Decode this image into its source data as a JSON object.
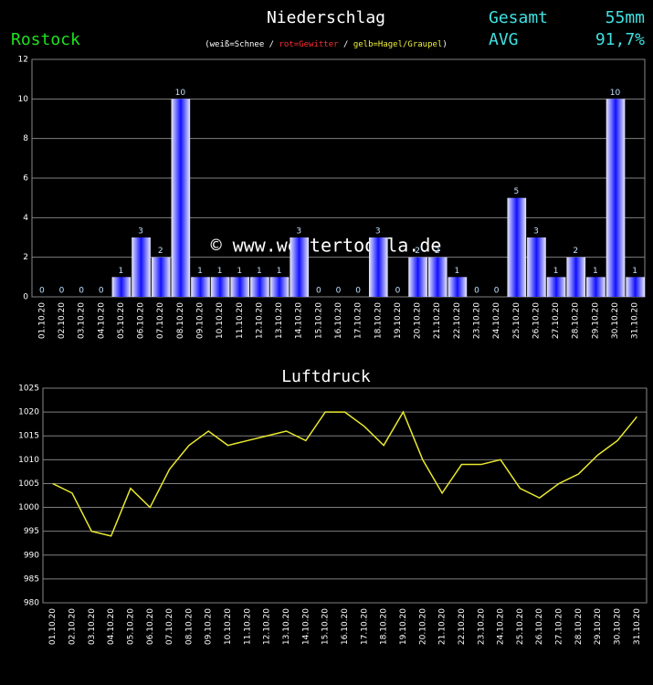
{
  "station": "Rostock",
  "summary": [
    {
      "label": "Gesamt",
      "value": "55mm"
    },
    {
      "label": "AVG",
      "value": "91,7%"
    }
  ],
  "chart_data": [
    {
      "type": "bar",
      "title": "Niederschlag",
      "note": [
        "(",
        "weiß=Schnee",
        " / ",
        "rot=Gewitter",
        " / ",
        "gelb=Hagel/Graupel",
        ")"
      ],
      "watermark": "© www.wettertoolla.de",
      "categories": [
        "01.10.20",
        "02.10.20",
        "03.10.20",
        "04.10.20",
        "05.10.20",
        "06.10.20",
        "07.10.20",
        "08.10.20",
        "09.10.20",
        "10.10.20",
        "11.10.20",
        "12.10.20",
        "13.10.20",
        "14.10.20",
        "15.10.20",
        "16.10.20",
        "17.10.20",
        "18.10.20",
        "19.10.20",
        "20.10.20",
        "21.10.20",
        "22.10.20",
        "23.10.20",
        "24.10.20",
        "25.10.20",
        "26.10.20",
        "27.10.20",
        "28.10.20",
        "29.10.20",
        "30.10.20",
        "31.10.20"
      ],
      "values": [
        0,
        0,
        0,
        0,
        1,
        3,
        2,
        10,
        1,
        1,
        1,
        1,
        1,
        3,
        0,
        0,
        0,
        3,
        0,
        2,
        2,
        1,
        0,
        0,
        5,
        3,
        1,
        2,
        1,
        10,
        1
      ],
      "color": "#1010ff",
      "ylim": [
        0,
        12
      ],
      "yticks": [
        0,
        2,
        4,
        6,
        8,
        10,
        12
      ],
      "grid": true
    },
    {
      "type": "line",
      "title": "Luftdruck",
      "categories": [
        "01.10.20",
        "02.10.20",
        "03.10.20",
        "04.10.20",
        "05.10.20",
        "06.10.20",
        "07.10.20",
        "08.10.20",
        "09.10.20",
        "10.10.20",
        "11.10.20",
        "12.10.20",
        "13.10.20",
        "14.10.20",
        "15.10.20",
        "16.10.20",
        "17.10.20",
        "18.10.20",
        "19.10.20",
        "20.10.20",
        "21.10.20",
        "22.10.20",
        "23.10.20",
        "24.10.20",
        "25.10.20",
        "26.10.20",
        "27.10.20",
        "28.10.20",
        "29.10.20",
        "30.10.20",
        "31.10.20"
      ],
      "values": [
        1005,
        1003,
        995,
        994,
        1004,
        1000,
        1008,
        1013,
        1016,
        1013,
        1014,
        1015,
        1016,
        1014,
        1020,
        1020,
        1017,
        1013,
        1020,
        1010,
        1003,
        1009,
        1009,
        1010,
        1004,
        1002,
        1005,
        1007,
        1011,
        1014,
        1019
      ],
      "color": "#e8e830",
      "ylim": [
        980,
        1025
      ],
      "yticks": [
        980,
        985,
        990,
        995,
        1000,
        1005,
        1010,
        1015,
        1020,
        1025
      ],
      "grid": true
    }
  ]
}
